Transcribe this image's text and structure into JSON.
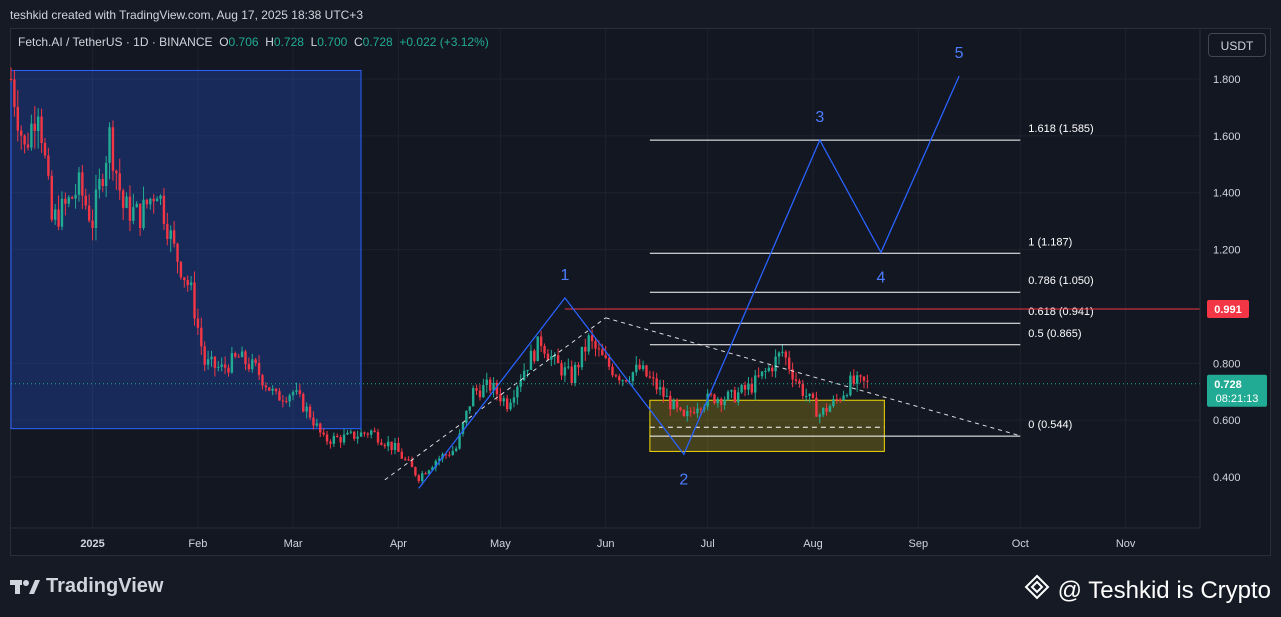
{
  "header": {
    "credit": "teshkid created with TradingView.com, Aug 17, 2025 18:38 UTC+3"
  },
  "legend": {
    "symbol": "Fetch.AI / TetherUS · 1D · BINANCE",
    "o_label": "O",
    "o": "0.706",
    "h_label": "H",
    "h": "0.728",
    "l_label": "L",
    "l": "0.700",
    "c_label": "C",
    "c": "0.728",
    "change": "+0.022 (+3.12%)"
  },
  "currency": "USDT",
  "footer": {
    "logo": "TradingView",
    "watermark": "@ Teshkid is Crypto"
  },
  "colors": {
    "bg": "#131722",
    "up": "#22ab94",
    "down": "#f23645",
    "wave": "#2962ff",
    "zone": "#f5d90a"
  },
  "chart_data": {
    "type": "candlestick",
    "title": "Fetch.AI / TetherUS · 1D · BINANCE",
    "ylim": [
      0.3,
      2.0
    ],
    "y_ticks": [
      "1.800",
      "1.600",
      "1.400",
      "1.200",
      "0.800",
      "0.600",
      "0.400"
    ],
    "x_ticks": [
      "2025",
      "Feb",
      "Mar",
      "Apr",
      "May",
      "Jun",
      "Jul",
      "Aug",
      "Sep",
      "Oct",
      "Nov"
    ],
    "x_range": [
      "2024-12-08",
      "2025-11-22"
    ],
    "last_price": "0.728",
    "countdown": "08:21:13",
    "alert_price": "0.991",
    "price_path": [
      [
        "2024-12-08",
        1.8
      ],
      [
        "2024-12-12",
        1.55
      ],
      [
        "2024-12-16",
        1.72
      ],
      [
        "2024-12-20",
        1.3
      ],
      [
        "2024-12-24",
        1.35
      ],
      [
        "2024-12-28",
        1.42
      ],
      [
        "2025-01-01",
        1.3
      ],
      [
        "2025-01-06",
        1.6
      ],
      [
        "2025-01-10",
        1.35
      ],
      [
        "2025-01-15",
        1.32
      ],
      [
        "2025-01-20",
        1.42
      ],
      [
        "2025-01-25",
        1.2
      ],
      [
        "2025-01-30",
        1.05
      ],
      [
        "2025-02-03",
        0.8
      ],
      [
        "2025-02-08",
        0.78
      ],
      [
        "2025-02-13",
        0.82
      ],
      [
        "2025-02-18",
        0.78
      ],
      [
        "2025-02-24",
        0.68
      ],
      [
        "2025-03-01",
        0.7
      ],
      [
        "2025-03-06",
        0.62
      ],
      [
        "2025-03-10",
        0.53
      ],
      [
        "2025-03-17",
        0.54
      ],
      [
        "2025-03-24",
        0.56
      ],
      [
        "2025-03-31",
        0.5
      ],
      [
        "2025-04-07",
        0.4
      ],
      [
        "2025-04-12",
        0.46
      ],
      [
        "2025-04-18",
        0.5
      ],
      [
        "2025-04-23",
        0.7
      ],
      [
        "2025-04-28",
        0.72
      ],
      [
        "2025-05-03",
        0.66
      ],
      [
        "2025-05-08",
        0.78
      ],
      [
        "2025-05-13",
        0.88
      ],
      [
        "2025-05-17",
        0.8
      ],
      [
        "2025-05-22",
        0.75
      ],
      [
        "2025-05-27",
        0.88
      ],
      [
        "2025-06-01",
        0.8
      ],
      [
        "2025-06-06",
        0.75
      ],
      [
        "2025-06-11",
        0.78
      ],
      [
        "2025-06-15",
        0.73
      ],
      [
        "2025-06-20",
        0.66
      ],
      [
        "2025-06-24",
        0.6
      ],
      [
        "2025-06-28",
        0.66
      ],
      [
        "2025-07-03",
        0.68
      ],
      [
        "2025-07-08",
        0.68
      ],
      [
        "2025-07-14",
        0.72
      ],
      [
        "2025-07-19",
        0.78
      ],
      [
        "2025-07-23",
        0.84
      ],
      [
        "2025-07-28",
        0.72
      ],
      [
        "2025-08-03",
        0.62
      ],
      [
        "2025-08-08",
        0.67
      ],
      [
        "2025-08-12",
        0.73
      ],
      [
        "2025-08-17",
        0.728
      ]
    ],
    "zones": [
      {
        "name": "blue-box",
        "from": "2024-12-08",
        "to": "2025-03-21",
        "top": 1.83,
        "bottom": 0.57
      },
      {
        "name": "yellow-box",
        "from": "2025-06-14",
        "to": "2025-08-22",
        "top": 0.67,
        "bottom": 0.49
      }
    ],
    "fib_levels": [
      {
        "label": "1.618 (1.585)",
        "value": 1.585
      },
      {
        "label": "1 (1.187)",
        "value": 1.187
      },
      {
        "label": "0.786 (1.050)",
        "value": 1.05
      },
      {
        "label": "0.618 (0.941)",
        "value": 0.941
      },
      {
        "label": "0.5 (0.865)",
        "value": 0.865
      },
      {
        "label": "0 (0.544)",
        "value": 0.544
      }
    ],
    "fib_range": [
      "2025-06-14",
      "2025-10-01"
    ],
    "wave_path": [
      {
        "label": "",
        "date": "2025-04-07",
        "price": 0.36
      },
      {
        "label": "1",
        "date": "2025-05-20",
        "price": 1.03
      },
      {
        "label": "2",
        "date": "2025-06-24",
        "price": 0.48
      },
      {
        "label": "3",
        "date": "2025-08-03",
        "price": 1.585
      },
      {
        "label": "4",
        "date": "2025-08-21",
        "price": 1.19
      },
      {
        "label": "5",
        "date": "2025-09-13",
        "price": 1.81
      }
    ],
    "trendlines": [
      {
        "name": "rising-support",
        "from": [
          "2025-03-28",
          0.39
        ],
        "to": [
          "2025-06-01",
          0.96
        ]
      },
      {
        "name": "falling-resistance",
        "from": [
          "2025-06-01",
          0.96
        ],
        "to": [
          "2025-10-01",
          0.545
        ]
      }
    ],
    "horizontal_lines": [
      {
        "name": "red-resistance",
        "from": "2025-05-20",
        "price": 0.991,
        "color": "#f23645"
      },
      {
        "name": "zone-mid-dashed",
        "from": "2025-06-14",
        "to": "2025-08-22",
        "price": 0.575,
        "dashed": true
      }
    ]
  }
}
